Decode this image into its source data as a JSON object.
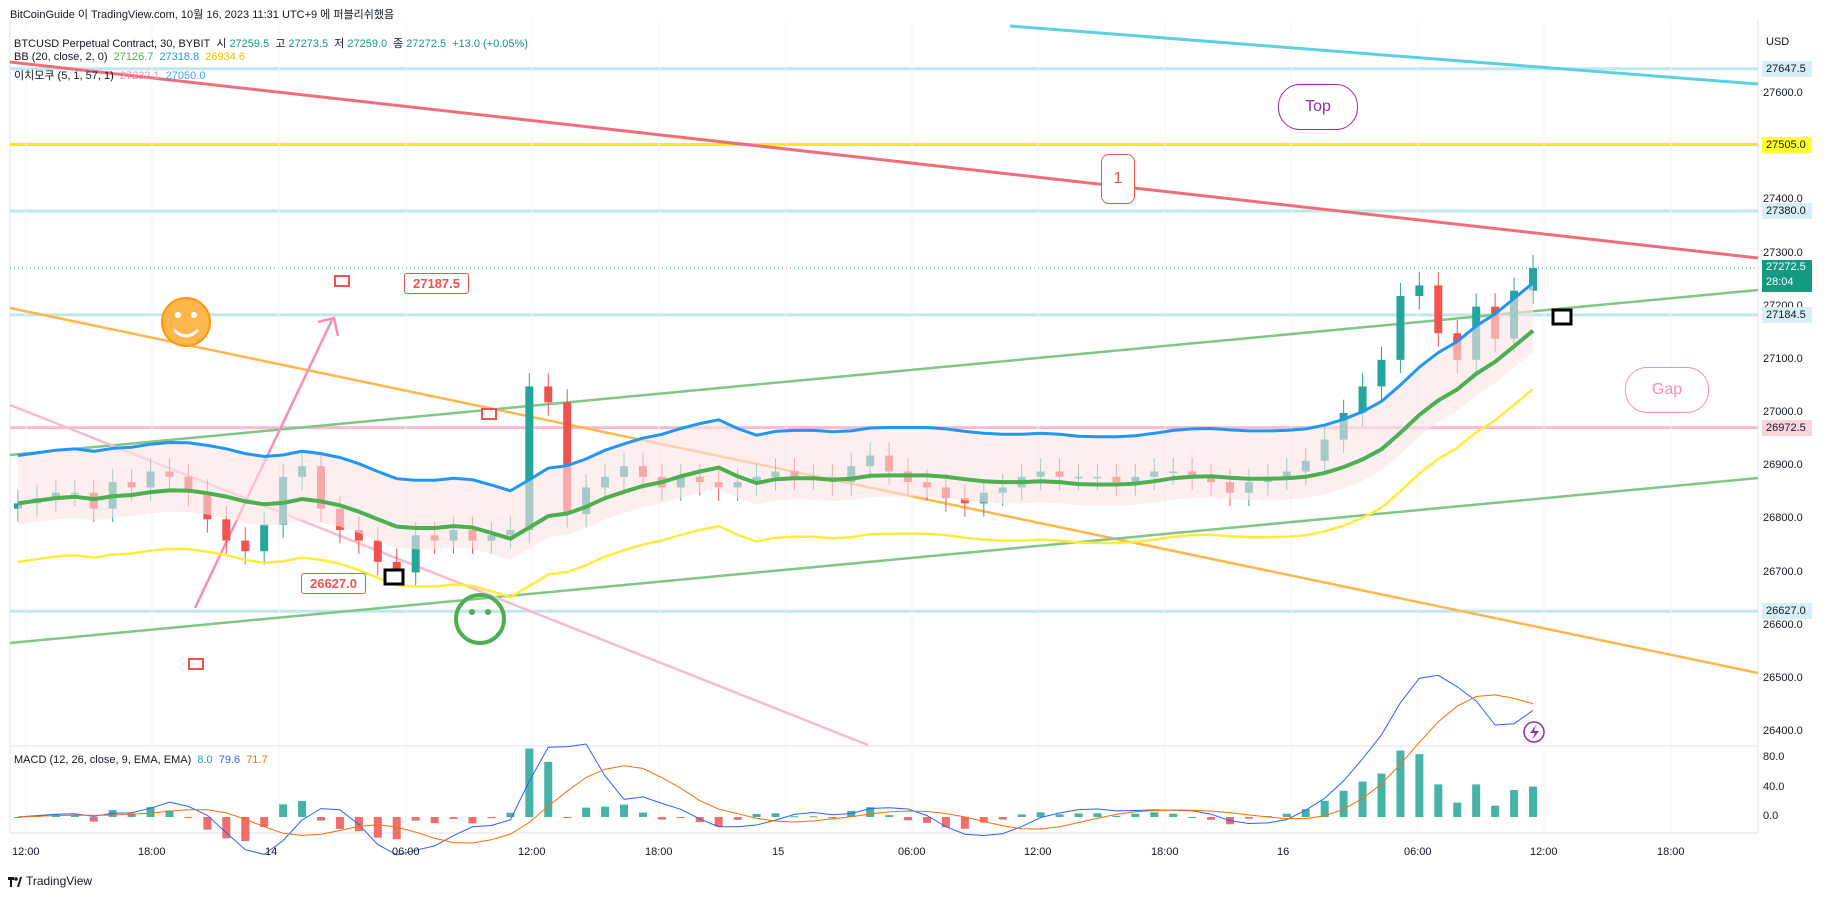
{
  "header": {
    "source": "BitCoinGuide 이 TradingView.com, 10월 16, 2023 11:31 UTC+9 에 퍼블리쉬했음",
    "symbol_title": "BTCUSD Perpetual Contract, 30, BYBIT",
    "ohlc": {
      "o_label": "시",
      "o": "27259.5",
      "h_label": "고",
      "h": "27273.5",
      "l_label": "저",
      "l": "27259.0",
      "c_label": "종",
      "c": "27272.5",
      "change": "+13.0 (+0.05%)"
    },
    "bb": {
      "label": "BB (20, close, 2, 0)",
      "v1": "27126.7",
      "v2": "27318.8",
      "v3": "26934.6"
    },
    "ichimoku": {
      "label": "이치모쿠 (5, 1, 57, 1)",
      "v1": "27232.1",
      "v2": "27050.0"
    },
    "macd": {
      "label": "MACD (12, 26, close, 9, EMA, EMA)",
      "v1": "8.0",
      "v2": "79.6",
      "v3": "71.7"
    }
  },
  "currency": "USD",
  "price_axis": [
    "27600.0",
    "27500.0",
    "27400.0",
    "27300.0",
    "27200.0",
    "27100.0",
    "27000.0",
    "26900.0",
    "26800.0",
    "26700.0",
    "26600.0",
    "26500.0",
    "26400.0"
  ],
  "macd_axis": [
    "80.0",
    "40.0",
    "0.0"
  ],
  "price_tags": [
    {
      "value": "27647.5",
      "bg": "#d8f0f5",
      "fg": "#131722"
    },
    {
      "value": "27505.0",
      "bg": "#ffff33",
      "fg": "#131722"
    },
    {
      "value": "27380.0",
      "bg": "#d8f0f5",
      "fg": "#131722"
    },
    {
      "value": "27184.5",
      "bg": "#d8f0f5",
      "fg": "#131722"
    },
    {
      "value": "26972.5",
      "bg": "#fbd5dc",
      "fg": "#131722"
    },
    {
      "value": "26627.0",
      "bg": "#d8f0f5",
      "fg": "#131722"
    }
  ],
  "last_price": {
    "value": "27272.5",
    "countdown": "28:04",
    "bg": "#159980"
  },
  "time_axis": [
    "12:00",
    "18:00",
    "14",
    "06:00",
    "12:00",
    "18:00",
    "15",
    "06:00",
    "12:00",
    "18:00",
    "16",
    "06:00",
    "12:00",
    "18:00"
  ],
  "annotations": {
    "label_high": "27187.5",
    "label_low": "26627.0",
    "top_bubble": "Top",
    "gap_bubble": "Gap",
    "one_badge": "1"
  },
  "footer": {
    "brand": "TradingView"
  },
  "colors": {
    "up": "#26a69a",
    "down": "#ef5350",
    "bb_upper": "#2196f3",
    "bb_basis": "#4caf50",
    "yellow": "#ffeb3b",
    "red_line": "#f06d7a",
    "cyan_line": "#5ad1e0",
    "green_channel": "#81c784",
    "orange": "#ffa726"
  },
  "chart_data": [
    {
      "type": "candlestick",
      "title": "BTCUSD Perpetual Contract, 30, BYBIT",
      "x_ticks": [
        "12:00",
        "18:00",
        "14",
        "06:00",
        "12:00",
        "18:00",
        "15",
        "06:00",
        "12:00",
        "18:00",
        "16",
        "06:00",
        "12:00"
      ],
      "ylim": [
        26380,
        27720
      ],
      "close_approx": [
        26830,
        26840,
        26850,
        26850,
        26820,
        26870,
        26860,
        26890,
        26880,
        26850,
        26800,
        26760,
        26740,
        26790,
        26880,
        26900,
        26820,
        26780,
        26760,
        26720,
        26700,
        26770,
        26760,
        26780,
        26760,
        26770,
        26780,
        27050,
        27020,
        26810,
        26860,
        26880,
        26900,
        26880,
        26860,
        26880,
        26870,
        26860,
        26870,
        26880,
        26890,
        26880,
        26880,
        26870,
        26900,
        26920,
        26890,
        26870,
        26860,
        26840,
        26830,
        26850,
        26860,
        26880,
        26890,
        26880,
        26880,
        26880,
        26870,
        26880,
        26890,
        26890,
        26880,
        26870,
        26850,
        26870,
        26880,
        26890,
        26910,
        26950,
        27000,
        27050,
        27100,
        27220,
        27240,
        27150,
        27100,
        27200,
        27140,
        27230,
        27272.5
      ],
      "series": [
        {
          "name": "BB (20, close, 2, 0)",
          "last": [
            27126.7,
            27318.8,
            26934.6
          ]
        },
        {
          "name": "이치모쿠 (5, 1, 57, 1)",
          "last": [
            27232.1,
            27050.0
          ]
        }
      ]
    },
    {
      "type": "bar",
      "title": "MACD (12, 26, close, 9, EMA, EMA)",
      "ylim": [
        -15,
        95
      ],
      "last": {
        "histogram": 8.0,
        "macd": 79.6,
        "signal": 71.7
      }
    }
  ]
}
